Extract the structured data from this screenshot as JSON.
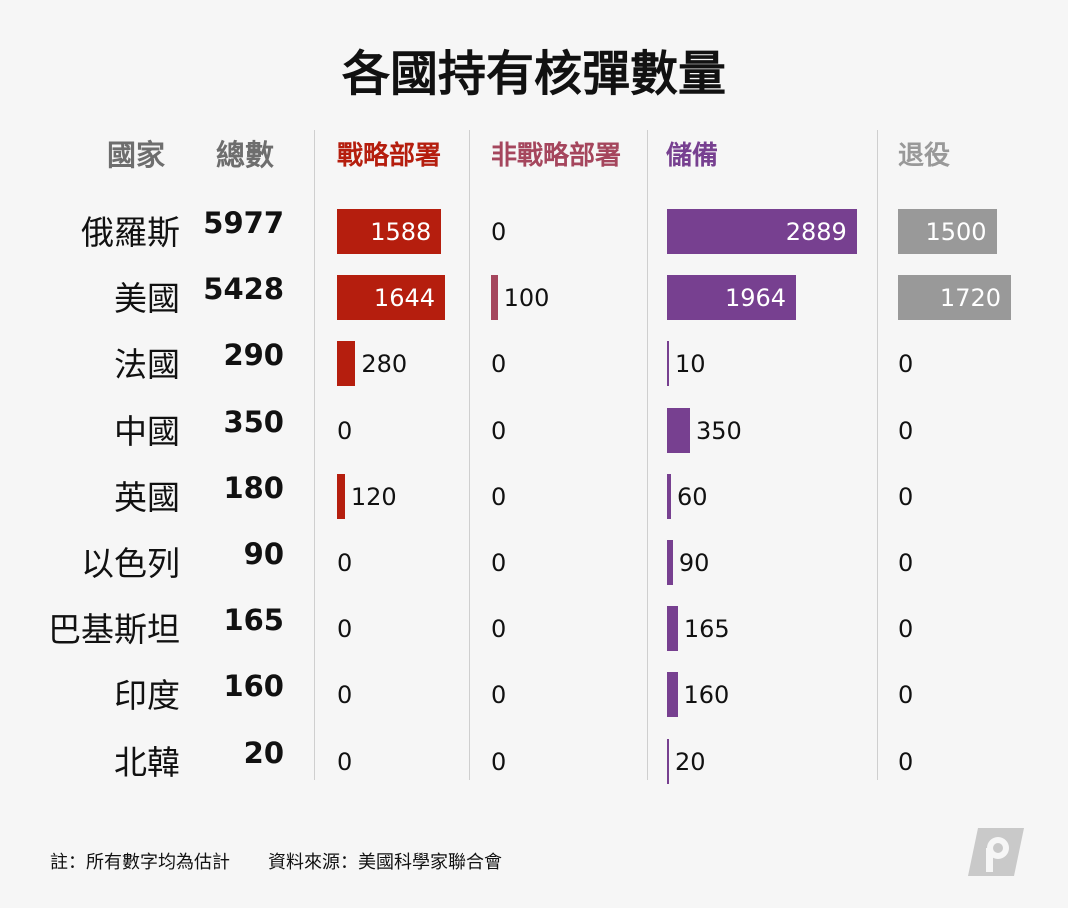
{
  "title": "各國持有核彈數量",
  "headers": {
    "country": "國家",
    "total": "總數",
    "strategic": "戰略部署",
    "nonstrategic": "非戰略部署",
    "reserve": "儲備",
    "retired": "退役"
  },
  "colors": {
    "strategic": "#b51e0e",
    "nonstrategic": "#a5465d",
    "reserve": "#774090",
    "retired": "#999999",
    "header_gray": "#6e6e6e"
  },
  "footer": {
    "note": "註：所有數字均為估計",
    "source": "資料來源：美國科學家聯合會"
  },
  "logo_icon": "p-logo-icon",
  "chart_data": {
    "type": "table",
    "columns": [
      "戰略部署",
      "非戰略部署",
      "儲備",
      "退役"
    ],
    "rows": [
      {
        "country": "俄羅斯",
        "total": 5977,
        "strategic": 1588,
        "nonstrategic": 0,
        "reserve": 2889,
        "retired": 1500
      },
      {
        "country": "美國",
        "total": 5428,
        "strategic": 1644,
        "nonstrategic": 100,
        "reserve": 1964,
        "retired": 1720
      },
      {
        "country": "法國",
        "total": 290,
        "strategic": 280,
        "nonstrategic": 0,
        "reserve": 10,
        "retired": 0
      },
      {
        "country": "中國",
        "total": 350,
        "strategic": 0,
        "nonstrategic": 0,
        "reserve": 350,
        "retired": 0
      },
      {
        "country": "英國",
        "total": 180,
        "strategic": 120,
        "nonstrategic": 0,
        "reserve": 60,
        "retired": 0
      },
      {
        "country": "以色列",
        "total": 90,
        "strategic": 0,
        "nonstrategic": 0,
        "reserve": 90,
        "retired": 0
      },
      {
        "country": "巴基斯坦",
        "total": 165,
        "strategic": 0,
        "nonstrategic": 0,
        "reserve": 165,
        "retired": 0
      },
      {
        "country": "印度",
        "total": 160,
        "strategic": 0,
        "nonstrategic": 0,
        "reserve": 160,
        "retired": 0
      },
      {
        "country": "北韓",
        "total": 20,
        "strategic": 0,
        "nonstrategic": 0,
        "reserve": 20,
        "retired": 0
      }
    ]
  }
}
